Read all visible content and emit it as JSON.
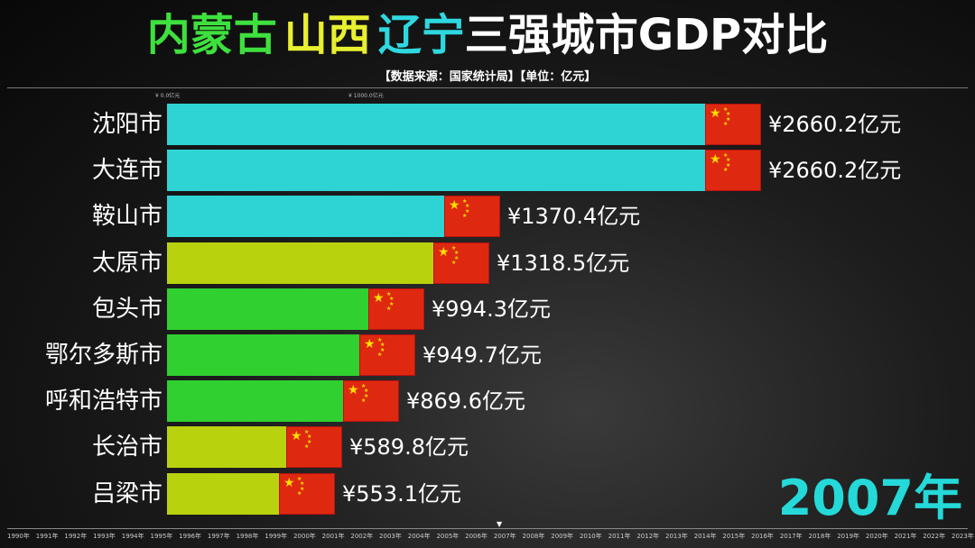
{
  "title": {
    "part_nmg": "内蒙古",
    "part_sx": "山西",
    "part_ln": "辽宁",
    "part_rest": "三强城市GDP对比"
  },
  "source": "【数据来源：国家统计局】【单位：亿元】",
  "top_ticks": [
    "¥ 0.0亿元",
    "¥ 1000.0亿元"
  ],
  "current_year": "2007年",
  "year_axis": [
    "1990年",
    "1991年",
    "1992年",
    "1993年",
    "1994年",
    "1995年",
    "1996年",
    "1997年",
    "1998年",
    "1999年",
    "2000年",
    "2001年",
    "2002年",
    "2003年",
    "2004年",
    "2005年",
    "2006年",
    "2007年",
    "2008年",
    "2009年",
    "2010年",
    "2011年",
    "2012年",
    "2013年",
    "2014年",
    "2015年",
    "2016年",
    "2017年",
    "2018年",
    "2019年",
    "2020年",
    "2021年",
    "2022年",
    "2023年"
  ],
  "colors": {
    "辽宁": "#2ed3d3",
    "山西": "#b9d20e",
    "内蒙古": "#2fd02f",
    "flag_red": "#de2910",
    "flag_star": "#ffde00"
  },
  "chart_data": {
    "type": "bar",
    "orientation": "horizontal",
    "unit": "亿元",
    "categories": [
      "沈阳市",
      "大连市",
      "鞍山市",
      "太原市",
      "包头市",
      "鄂尔多斯市",
      "呼和浩特市",
      "长治市",
      "吕梁市"
    ],
    "values": [
      2660.2,
      2660.2,
      1370.4,
      1318.5,
      994.3,
      949.7,
      869.6,
      589.8,
      553.1
    ],
    "value_labels": [
      "¥2660.2亿元",
      "¥2660.2亿元",
      "¥1370.4亿元",
      "¥1318.5亿元",
      "¥994.3亿元",
      "¥949.7亿元",
      "¥869.6亿元",
      "¥589.8亿元",
      "¥553.1亿元"
    ],
    "regions": [
      "辽宁",
      "辽宁",
      "辽宁",
      "山西",
      "内蒙古",
      "内蒙古",
      "内蒙古",
      "山西",
      "山西"
    ],
    "xlim": [
      0,
      2660.2
    ]
  }
}
